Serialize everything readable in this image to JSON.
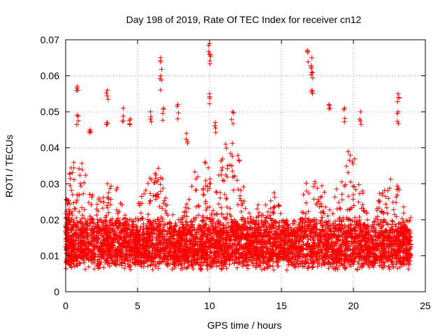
{
  "chart_data": {
    "type": "scatter",
    "title": "Day 198 of 2019, Rate Of TEC Index for receiver cn12",
    "xlabel": "GPS time / hours",
    "ylabel": "ROTI / TECUs",
    "xlim": [
      0,
      25
    ],
    "ylim": [
      0,
      0.07
    ],
    "x_ticks": [
      0,
      5,
      10,
      15,
      20,
      25
    ],
    "x_tick_labels": [
      "0",
      "5",
      "10",
      "15",
      "20",
      "25"
    ],
    "y_ticks": [
      0,
      0.01,
      0.02,
      0.03,
      0.04,
      0.05,
      0.06,
      0.07
    ],
    "y_tick_labels": [
      "0",
      "0.01",
      "0.02",
      "0.03",
      "0.04",
      "0.05",
      "0.06",
      "0.07"
    ],
    "grid": true,
    "marker": "+",
    "color": "#ff0000",
    "series": [
      {
        "name": "ROTI",
        "x_range": [
          0,
          24
        ],
        "sampling": "dense, approx. every 30 s per satellite",
        "typical_band": [
          0.005,
          0.02
        ],
        "outliers": [
          {
            "x": 0.8,
            "y": 0.057
          },
          {
            "x": 0.8,
            "y": 0.049
          },
          {
            "x": 1.7,
            "y": 0.045
          },
          {
            "x": 2.9,
            "y": 0.056
          },
          {
            "x": 2.9,
            "y": 0.047
          },
          {
            "x": 4.0,
            "y": 0.051
          },
          {
            "x": 4.5,
            "y": 0.048
          },
          {
            "x": 5.9,
            "y": 0.05
          },
          {
            "x": 6.6,
            "y": 0.065
          },
          {
            "x": 6.6,
            "y": 0.06
          },
          {
            "x": 6.8,
            "y": 0.051
          },
          {
            "x": 7.8,
            "y": 0.052
          },
          {
            "x": 8.4,
            "y": 0.044
          },
          {
            "x": 10.0,
            "y": 0.069
          },
          {
            "x": 10.0,
            "y": 0.066
          },
          {
            "x": 10.0,
            "y": 0.055
          },
          {
            "x": 10.4,
            "y": 0.047
          },
          {
            "x": 11.6,
            "y": 0.05
          },
          {
            "x": 16.8,
            "y": 0.067
          },
          {
            "x": 17.1,
            "y": 0.065
          },
          {
            "x": 17.1,
            "y": 0.061
          },
          {
            "x": 17.1,
            "y": 0.056
          },
          {
            "x": 18.3,
            "y": 0.052
          },
          {
            "x": 19.4,
            "y": 0.051
          },
          {
            "x": 20.5,
            "y": 0.05
          },
          {
            "x": 23.1,
            "y": 0.055
          },
          {
            "x": 23.1,
            "y": 0.05
          }
        ]
      }
    ]
  }
}
